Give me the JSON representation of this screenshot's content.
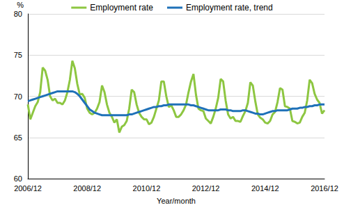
{
  "chart_data": {
    "type": "line",
    "y_label": "%",
    "x_label": "Year/month",
    "categories": [
      "2006/12",
      null,
      null,
      null,
      null,
      null,
      null,
      null,
      null,
      null,
      null,
      null,
      null,
      null,
      null,
      null,
      null,
      null,
      null,
      null,
      null,
      null,
      null,
      null,
      "2008/12",
      null,
      null,
      null,
      null,
      null,
      null,
      null,
      null,
      null,
      null,
      null,
      null,
      null,
      null,
      null,
      null,
      null,
      null,
      null,
      null,
      null,
      null,
      null,
      "2010/12",
      null,
      null,
      null,
      null,
      null,
      null,
      null,
      null,
      null,
      null,
      null,
      null,
      null,
      null,
      null,
      null,
      null,
      null,
      null,
      null,
      null,
      null,
      null,
      "2012/12",
      null,
      null,
      null,
      null,
      null,
      null,
      null,
      null,
      null,
      null,
      null,
      null,
      null,
      null,
      null,
      null,
      null,
      null,
      null,
      null,
      null,
      null,
      null,
      "2014/12",
      null,
      null,
      null,
      null,
      null,
      null,
      null,
      null,
      null,
      null,
      null,
      null,
      null,
      null,
      null,
      null,
      null,
      null,
      null,
      null,
      null,
      null,
      null,
      "2016/12"
    ],
    "series": [
      {
        "name": "Employment rate",
        "color": "#8dc641",
        "values": [
          69.0,
          67.2,
          68.0,
          68.8,
          69.3,
          70.5,
          73.5,
          73.1,
          72.0,
          70.0,
          69.5,
          69.7,
          69.2,
          69.2,
          69.0,
          69.5,
          70.5,
          72.0,
          74.3,
          73.4,
          71.5,
          70.2,
          70.3,
          69.8,
          68.5,
          68.0,
          67.8,
          68.0,
          68.5,
          69.3,
          71.3,
          70.5,
          69.0,
          68.0,
          67.5,
          66.8,
          67.2,
          65.6,
          66.3,
          66.5,
          67.0,
          68.5,
          70.8,
          70.5,
          69.0,
          68.0,
          67.5,
          67.2,
          67.2,
          66.6,
          66.8,
          67.5,
          68.5,
          69.5,
          71.8,
          71.8,
          70.0,
          68.7,
          68.9,
          68.3,
          67.5,
          67.5,
          67.8,
          68.3,
          69.0,
          70.5,
          71.8,
          72.7,
          70.2,
          68.5,
          68.3,
          68.2,
          67.3,
          67.0,
          66.7,
          67.5,
          68.5,
          69.8,
          72.1,
          71.8,
          69.5,
          67.8,
          67.3,
          67.5,
          67.0,
          67.0,
          66.9,
          67.6,
          68.2,
          69.2,
          71.7,
          71.3,
          69.4,
          67.8,
          67.4,
          67.2,
          66.8,
          66.7,
          67.0,
          67.8,
          68.1,
          69.3,
          71.0,
          70.8,
          68.8,
          68.7,
          68.5,
          67.0,
          66.9,
          66.7,
          66.8,
          67.5,
          68.0,
          69.5,
          72.0,
          71.6,
          70.3,
          69.6,
          69.2,
          67.9,
          68.3
        ]
      },
      {
        "name": "Employment rate, trend",
        "color": "#1f71b8",
        "values": [
          69.4,
          69.5,
          69.6,
          69.7,
          69.8,
          69.9,
          70.0,
          70.1,
          70.2,
          70.3,
          70.4,
          70.5,
          70.6,
          70.6,
          70.6,
          70.6,
          70.6,
          70.6,
          70.6,
          70.5,
          70.3,
          70.0,
          69.6,
          69.2,
          68.8,
          68.4,
          68.2,
          68.0,
          67.9,
          67.8,
          67.7,
          67.7,
          67.7,
          67.7,
          67.7,
          67.7,
          67.7,
          67.7,
          67.7,
          67.7,
          67.7,
          67.8,
          67.8,
          67.9,
          68.0,
          68.1,
          68.2,
          68.3,
          68.4,
          68.5,
          68.6,
          68.7,
          68.7,
          68.8,
          68.8,
          68.9,
          68.9,
          69.0,
          69.0,
          69.0,
          69.0,
          69.0,
          69.0,
          69.0,
          69.0,
          69.0,
          68.9,
          68.9,
          68.8,
          68.7,
          68.6,
          68.5,
          68.4,
          68.3,
          68.3,
          68.3,
          68.3,
          68.3,
          68.4,
          68.4,
          68.4,
          68.3,
          68.3,
          68.2,
          68.2,
          68.2,
          68.2,
          68.3,
          68.3,
          68.2,
          68.1,
          68.0,
          67.9,
          67.9,
          67.8,
          67.8,
          67.9,
          68.0,
          68.1,
          68.2,
          68.2,
          68.3,
          68.3,
          68.3,
          68.3,
          68.3,
          68.4,
          68.5,
          68.5,
          68.5,
          68.6,
          68.6,
          68.7,
          68.7,
          68.8,
          68.8,
          68.9,
          68.9,
          69.0,
          69.0,
          69.0
        ]
      }
    ],
    "ylim": [
      60,
      80
    ],
    "yticks": [
      60,
      65,
      70,
      75,
      80
    ],
    "grid": true,
    "legend": "top"
  }
}
